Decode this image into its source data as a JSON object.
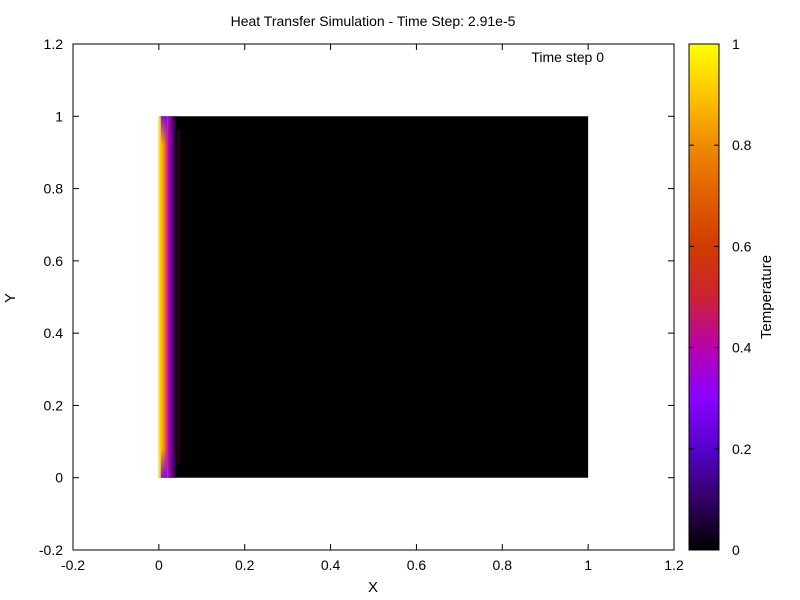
{
  "chart_data": {
    "type": "heatmap",
    "title": "Heat Transfer Simulation - Time Step: 2.91e-5",
    "annotation": "Time step 0",
    "xlabel": "X",
    "ylabel": "Y",
    "xlim": [
      -0.2,
      1.2
    ],
    "ylim": [
      -0.2,
      1.2
    ],
    "xticks": [
      -0.2,
      0,
      0.2,
      0.4,
      0.6,
      0.8,
      1,
      1.2
    ],
    "yticks": [
      -0.2,
      0,
      0.2,
      0.4,
      0.6,
      0.8,
      1,
      1.2
    ],
    "xtick_labels": [
      "-0.2",
      "0",
      "0.2",
      "0.4",
      "0.6",
      "0.8",
      "1",
      "1.2"
    ],
    "ytick_labels": [
      "-0.2",
      "0",
      "0.2",
      "0.4",
      "0.6",
      "0.8",
      "1",
      "1.2"
    ],
    "domain": {
      "x": [
        0,
        1
      ],
      "y": [
        0,
        1
      ]
    },
    "hot_boundary_x": 0,
    "hot_boundary_temperature": 1,
    "interior_temperature": 0,
    "colorbar": {
      "label": "Temperature",
      "range": [
        0,
        1
      ],
      "ticks": [
        0,
        0.2,
        0.4,
        0.6,
        0.8,
        1
      ],
      "tick_labels": [
        "0",
        "0.2",
        "0.4",
        "0.6",
        "0.8",
        "1"
      ],
      "colors": [
        {
          "value": 0,
          "color": "#000000"
        },
        {
          "value": 0.1,
          "color": "#330066"
        },
        {
          "value": 0.2,
          "color": "#5500cc"
        },
        {
          "value": 0.3,
          "color": "#8a00ff"
        },
        {
          "value": 0.4,
          "color": "#b800b0"
        },
        {
          "value": 0.5,
          "color": "#cc2233"
        },
        {
          "value": 0.6,
          "color": "#d03c00"
        },
        {
          "value": 0.7,
          "color": "#e06000"
        },
        {
          "value": 0.8,
          "color": "#ee8a00"
        },
        {
          "value": 0.9,
          "color": "#ffc400"
        },
        {
          "value": 1,
          "color": "#ffff00"
        }
      ]
    }
  }
}
